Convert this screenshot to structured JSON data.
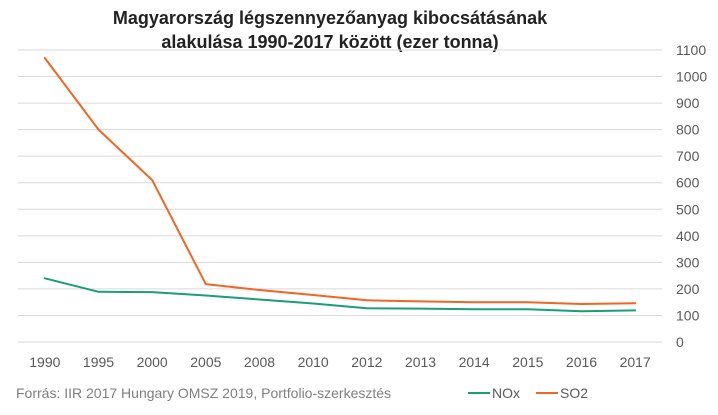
{
  "chart_data": {
    "type": "line",
    "title_line1": "Magyarország légszennyezőanyag kibocsátásának",
    "title_line2": "alakulása 1990-2017 között (ezer tonna)",
    "categories": [
      "1990",
      "1995",
      "2000",
      "2005",
      "2008",
      "2010",
      "2012",
      "2013",
      "2014",
      "2015",
      "2016",
      "2017"
    ],
    "series": [
      {
        "name": "NOx",
        "color": "#1a9e77",
        "values": [
          240,
          189,
          188,
          175,
          160,
          145,
          127,
          126,
          123,
          123,
          116,
          119
        ]
      },
      {
        "name": "SO2",
        "color": "#f26522",
        "values": [
          1070,
          800,
          610,
          218,
          196,
          177,
          157,
          153,
          150,
          150,
          143,
          146
        ]
      }
    ],
    "y_ticks": [
      "0",
      "100",
      "200",
      "300",
      "400",
      "500",
      "600",
      "700",
      "800",
      "900",
      "1000",
      "1100"
    ],
    "ylim": [
      0,
      1100
    ],
    "y_axis_side": "right",
    "grid": "horizontal",
    "legend_placement": "bottom-right",
    "source": "Forrás: IIR 2017 Hungary OMSZ 2019, Portfolio-szerkesztés"
  }
}
